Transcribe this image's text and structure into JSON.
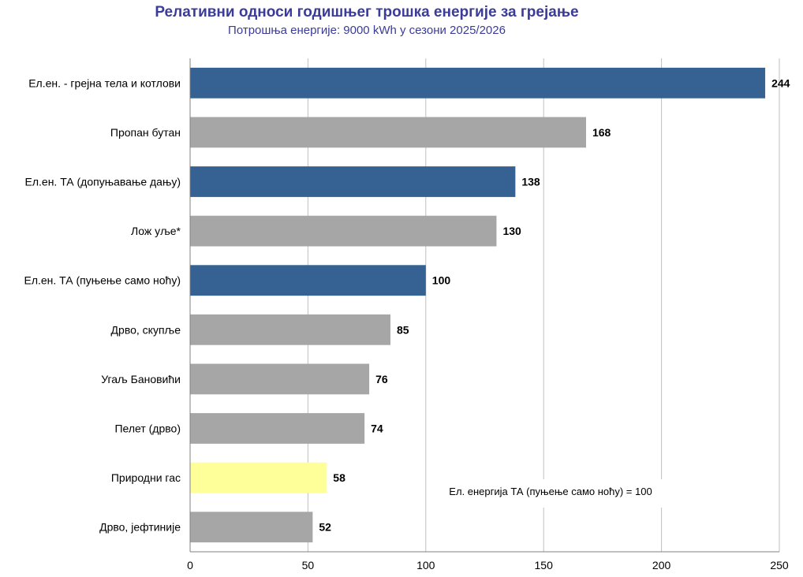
{
  "chart_data": {
    "type": "bar",
    "orientation": "horizontal",
    "title": "Релативни односи годишњег трошка енергије за грејање",
    "subtitle": "Потрошња енергије: 9000 kWh у сезони 2025/2026",
    "categories": [
      "Ел.ен. - грејна тела и котлови",
      "Пропан бутан",
      "Ел.ен. ТА (допуњавање дању)",
      "Лож уље*",
      "Ел.ен. ТА (пуњење само ноћу)",
      "Дрво, скупље",
      "Угаљ Бановићи",
      "Пелет (дрво)",
      "Природни гас",
      "Дрво, јефтиније"
    ],
    "values": [
      244,
      168,
      138,
      130,
      100,
      85,
      76,
      74,
      58,
      52
    ],
    "value_labels": [
      "244",
      "168",
      "138",
      "130",
      "100",
      "85",
      "76",
      "74",
      "58",
      "52"
    ],
    "bar_colors": [
      "#356193",
      "#a6a6a6",
      "#356193",
      "#a6a6a6",
      "#356193",
      "#a6a6a6",
      "#a6a6a6",
      "#a6a6a6",
      "#ffff99",
      "#a6a6a6"
    ],
    "xlim": [
      0,
      250
    ],
    "xticks": [
      0,
      50,
      100,
      150,
      200,
      250
    ],
    "xtick_labels": [
      "0",
      "50",
      "100",
      "150",
      "200",
      "250"
    ],
    "grid": "vertical",
    "annotation": "Ел. енергија ТА (пуњење само ноћу) = 100",
    "annotation_position": "bottom-right",
    "colors": {
      "title": "#3b3b9a",
      "grid": "#bfbfbf",
      "axis": "#808080"
    }
  }
}
